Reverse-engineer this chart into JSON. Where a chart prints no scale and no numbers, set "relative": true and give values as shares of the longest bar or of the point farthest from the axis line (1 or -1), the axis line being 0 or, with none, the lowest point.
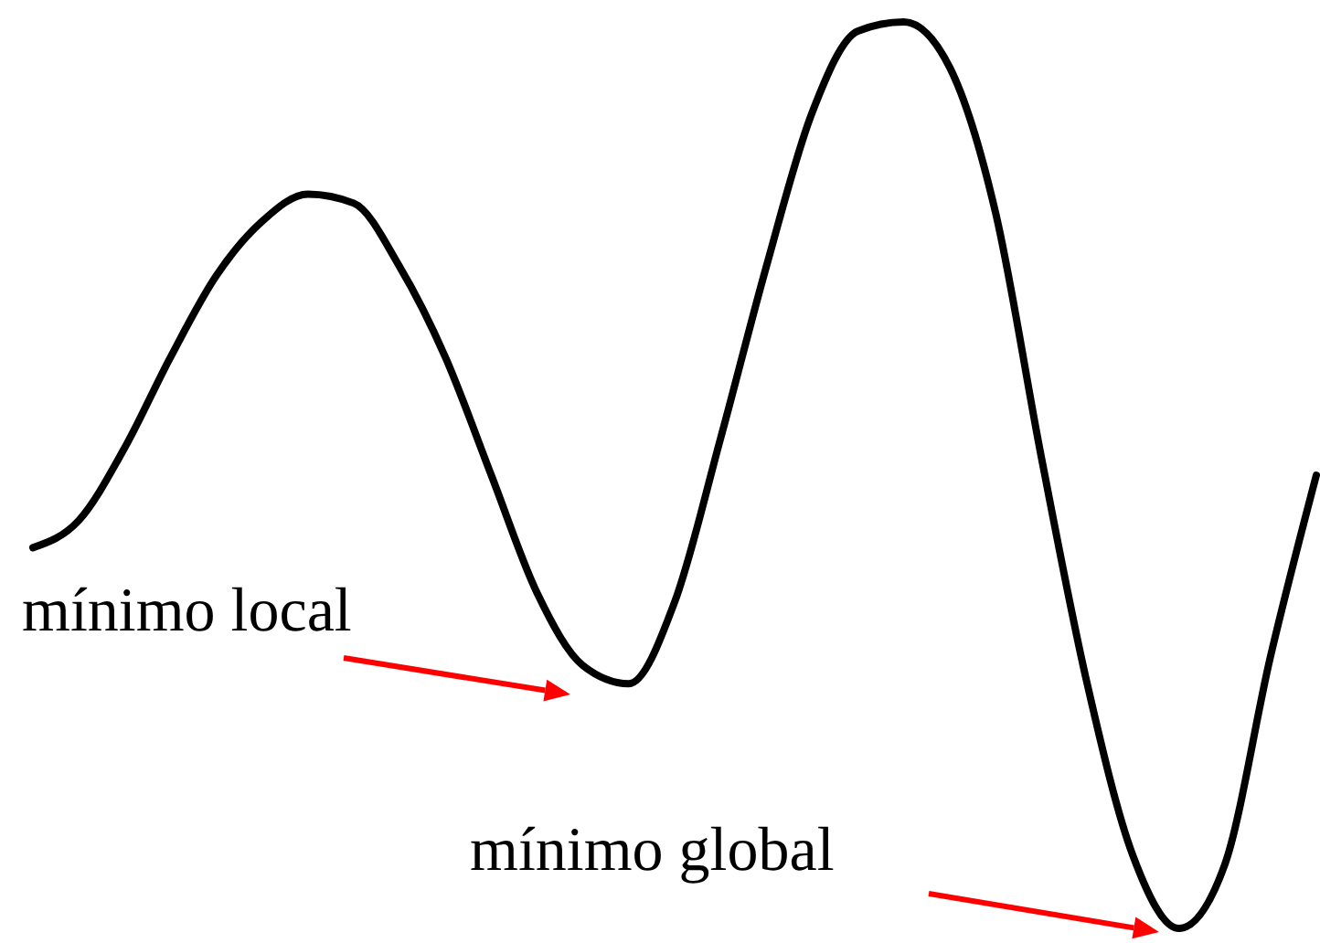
{
  "chart_data": {
    "type": "line",
    "relative": true,
    "line_style": "solid",
    "categories": [
      null,
      null,
      null,
      null,
      null,
      null,
      null,
      null,
      null,
      null,
      null,
      null,
      null,
      null,
      null,
      null,
      null,
      null,
      null,
      null,
      null,
      null,
      null,
      null,
      null,
      null,
      null,
      null,
      null
    ],
    "series": [
      {
        "color": "#000000",
        "values": [
          0.42,
          0.45,
          0.53,
          0.63,
          0.72,
          0.78,
          0.81,
          0.8,
          0.73,
          0.63,
          0.5,
          0.37,
          0.29,
          0.27,
          0.36,
          0.54,
          0.73,
          0.9,
          0.99,
          1.0,
          0.95,
          0.79,
          0.52,
          0.27,
          0.08,
          0,
          0.07,
          0.3,
          0.5
        ]
      }
    ],
    "annotations": [
      "mínimo local",
      "mínimo global"
    ]
  }
}
